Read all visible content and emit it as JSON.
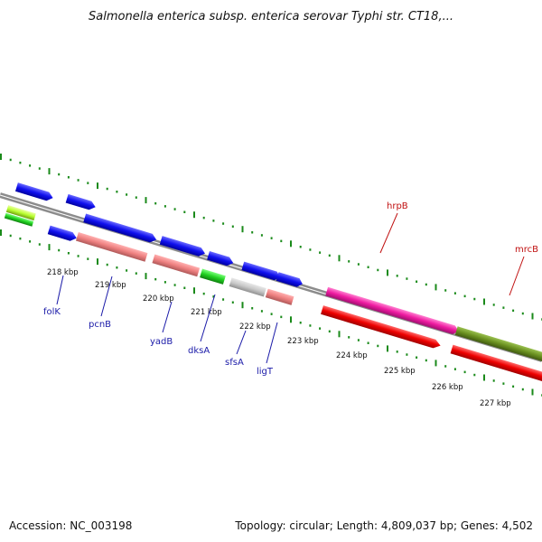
{
  "title": "Salmonella enterica subsp. enterica serovar Typhi str. CT18,...",
  "footer": {
    "accession": "Accession: NC_003198",
    "topology": "Topology: circular; Length: 4,809,037 bp; Genes: 4,502"
  },
  "colors": {
    "backbone": "#8c8c8c",
    "tick_dots": "#1a8a1a",
    "label_blue": "#1a1aa8",
    "label_red": "#c01010"
  },
  "ticks": [
    "218 kbp",
    "219 kbp",
    "220 kbp",
    "221 kbp",
    "222 kbp",
    "223 kbp",
    "224 kbp",
    "225 kbp",
    "226 kbp",
    "227 kbp"
  ],
  "gene_labels": [
    {
      "name": "folK",
      "color": "#1a1aa8"
    },
    {
      "name": "pcnB",
      "color": "#1a1aa8"
    },
    {
      "name": "yadB",
      "color": "#1a1aa8"
    },
    {
      "name": "dksA",
      "color": "#1a1aa8"
    },
    {
      "name": "sfsA",
      "color": "#1a1aa8"
    },
    {
      "name": "ligT",
      "color": "#1a1aa8"
    },
    {
      "name": "hrpB",
      "color": "#c01010"
    },
    {
      "name": "mrcB",
      "color": "#c01010"
    }
  ]
}
